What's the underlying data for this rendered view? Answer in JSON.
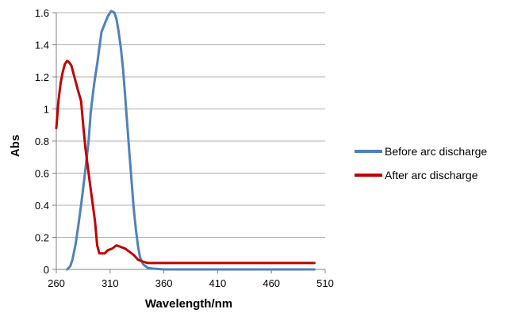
{
  "chart_data": {
    "type": "line",
    "title": "",
    "xlabel": "Wavelength/nm",
    "ylabel": "Abs",
    "xlim": [
      260,
      510
    ],
    "ylim": [
      0,
      1.6
    ],
    "x_ticks": [
      "260",
      "310",
      "360",
      "410",
      "460",
      "510"
    ],
    "y_ticks": [
      "0",
      "0.2",
      "0.4",
      "0.6",
      "0.8",
      "1",
      "1.2",
      "1.4",
      "1.6"
    ],
    "grid": "horizontal",
    "legend_position": "right",
    "series": [
      {
        "name": "Before arc discharge",
        "color": "#4f81bd",
        "points": [
          [
            270,
            0
          ],
          [
            273,
            0.02
          ],
          [
            275,
            0.06
          ],
          [
            278,
            0.16
          ],
          [
            281,
            0.3
          ],
          [
            284,
            0.45
          ],
          [
            287,
            0.62
          ],
          [
            290,
            0.8
          ],
          [
            292,
            0.98
          ],
          [
            295,
            1.15
          ],
          [
            298,
            1.28
          ],
          [
            300,
            1.38
          ],
          [
            302,
            1.48
          ],
          [
            305,
            1.53
          ],
          [
            308,
            1.58
          ],
          [
            311,
            1.61
          ],
          [
            314,
            1.6
          ],
          [
            316,
            1.56
          ],
          [
            318,
            1.48
          ],
          [
            320,
            1.38
          ],
          [
            322,
            1.25
          ],
          [
            324,
            1.08
          ],
          [
            326,
            0.9
          ],
          [
            328,
            0.72
          ],
          [
            330,
            0.55
          ],
          [
            332,
            0.38
          ],
          [
            334,
            0.25
          ],
          [
            336,
            0.14
          ],
          [
            338,
            0.07
          ],
          [
            341,
            0.03
          ],
          [
            345,
            0.01
          ],
          [
            350,
            0.005
          ],
          [
            360,
            0
          ],
          [
            400,
            0
          ],
          [
            450,
            0
          ],
          [
            500,
            0
          ]
        ]
      },
      {
        "name": "After arc discharge",
        "color": "#c00000",
        "points": [
          [
            260,
            0.88
          ],
          [
            262,
            1.05
          ],
          [
            264,
            1.16
          ],
          [
            266,
            1.23
          ],
          [
            268,
            1.28
          ],
          [
            270,
            1.3
          ],
          [
            272,
            1.29
          ],
          [
            274,
            1.27
          ],
          [
            276,
            1.22
          ],
          [
            278,
            1.17
          ],
          [
            280,
            1.12
          ],
          [
            283,
            1.05
          ],
          [
            285,
            0.9
          ],
          [
            287,
            0.76
          ],
          [
            290,
            0.6
          ],
          [
            293,
            0.45
          ],
          [
            296,
            0.3
          ],
          [
            298,
            0.15
          ],
          [
            300,
            0.1
          ],
          [
            303,
            0.1
          ],
          [
            305,
            0.1
          ],
          [
            308,
            0.12
          ],
          [
            312,
            0.13
          ],
          [
            316,
            0.15
          ],
          [
            320,
            0.14
          ],
          [
            324,
            0.13
          ],
          [
            328,
            0.11
          ],
          [
            332,
            0.09
          ],
          [
            336,
            0.06
          ],
          [
            340,
            0.05
          ],
          [
            345,
            0.04
          ],
          [
            360,
            0.04
          ],
          [
            400,
            0.04
          ],
          [
            450,
            0.04
          ],
          [
            500,
            0.04
          ]
        ]
      }
    ]
  }
}
